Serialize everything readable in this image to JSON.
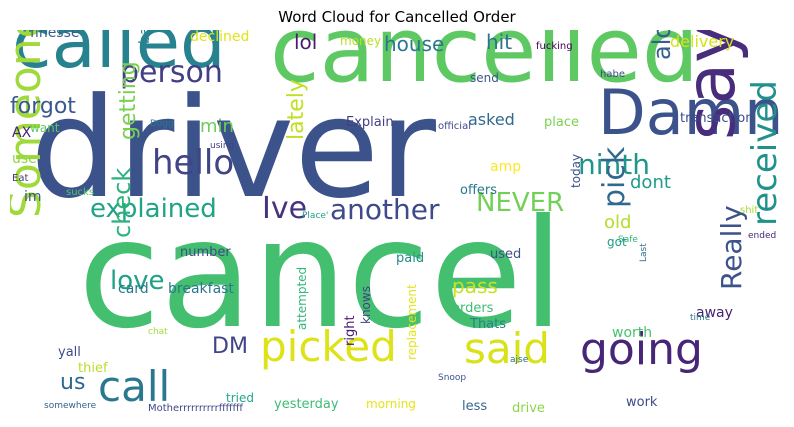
{
  "title": "Word Cloud for Cancelled Order",
  "words": [
    {
      "text": "driver",
      "color": "#3b528b"
    },
    {
      "text": "cancel",
      "color": "#44bf70"
    },
    {
      "text": "cancelled",
      "color": "#5ec962"
    },
    {
      "text": "called",
      "color": "#26828e"
    },
    {
      "text": "Damn",
      "color": "#3b528b"
    },
    {
      "text": "say",
      "color": "#472d7b"
    },
    {
      "text": "picked",
      "color": "#dde318"
    },
    {
      "text": "going",
      "color": "#482677"
    },
    {
      "text": "said",
      "color": "#d8e219"
    },
    {
      "text": "call",
      "color": "#2a788e"
    },
    {
      "text": "Someone",
      "color": "#9fda3a"
    },
    {
      "text": "received",
      "color": "#21918c"
    },
    {
      "text": "hello",
      "color": "#414487"
    },
    {
      "text": "person",
      "color": "#433e85"
    },
    {
      "text": "another",
      "color": "#3e4a89"
    },
    {
      "text": "Ive",
      "color": "#46327e"
    },
    {
      "text": "explained",
      "color": "#20a386"
    },
    {
      "text": "NEVER",
      "color": "#73d056"
    },
    {
      "text": "ninth",
      "color": "#1f968b"
    },
    {
      "text": "pick",
      "color": "#31688e"
    },
    {
      "text": "love",
      "color": "#1fa187"
    },
    {
      "text": "check",
      "color": "#2db27d"
    },
    {
      "text": "Really",
      "color": "#3b528b"
    },
    {
      "text": "alot",
      "color": "#355f8d"
    },
    {
      "text": "getting",
      "color": "#7ad151"
    },
    {
      "text": "lately",
      "color": "#c2df23"
    },
    {
      "text": "forgot",
      "color": "#38598c"
    },
    {
      "text": "house",
      "color": "#2a788e"
    },
    {
      "text": "hit",
      "color": "#2c738e"
    },
    {
      "text": "lol",
      "color": "#481f70"
    },
    {
      "text": "min",
      "color": "#6ccd5a"
    },
    {
      "text": "dont",
      "color": "#1e9b8a"
    },
    {
      "text": "us",
      "color": "#31688e"
    },
    {
      "text": "DM",
      "color": "#414487"
    },
    {
      "text": "pass",
      "color": "#cae11f"
    },
    {
      "text": "old",
      "color": "#b5de2b"
    },
    {
      "text": "delivery",
      "color": "#d8e219"
    },
    {
      "text": "asked",
      "color": "#306a8e"
    },
    {
      "text": "finesse",
      "color": "#355f8d"
    },
    {
      "text": "declined",
      "color": "#e2e418"
    },
    {
      "text": "back",
      "color": "#25848e"
    },
    {
      "text": "money",
      "color": "#bade28"
    },
    {
      "text": "fucking",
      "color": "#440154"
    },
    {
      "text": "send",
      "color": "#39568c"
    },
    {
      "text": "habe",
      "color": "#3f4889"
    },
    {
      "text": "Explain",
      "color": "#433e85"
    },
    {
      "text": "place",
      "color": "#7ad151"
    },
    {
      "text": "transaction",
      "color": "#3e4c8a"
    },
    {
      "text": "official",
      "color": "#3e4989"
    },
    {
      "text": "AX",
      "color": "#482475"
    },
    {
      "text": "want",
      "color": "#5ec962"
    },
    {
      "text": "Dogg",
      "color": "#2a788e"
    },
    {
      "text": "use",
      "color": "#90d743"
    },
    {
      "text": "using",
      "color": "#424186"
    },
    {
      "text": "Eat",
      "color": "#443983"
    },
    {
      "text": "im",
      "color": "#3b528b"
    },
    {
      "text": "sucks",
      "color": "#52c569"
    },
    {
      "text": "amp",
      "color": "#fde725"
    },
    {
      "text": "today",
      "color": "#3b528b"
    },
    {
      "text": "offers",
      "color": "#29798e"
    },
    {
      "text": "Place'",
      "color": "#1f9e89"
    },
    {
      "text": "shit",
      "color": "#a2da37"
    },
    {
      "text": "Safe",
      "color": "#2fb47c"
    },
    {
      "text": "ended",
      "color": "#482878"
    },
    {
      "text": "got",
      "color": "#1f9a8a"
    },
    {
      "text": "Last",
      "color": "#2c728e"
    },
    {
      "text": "number",
      "color": "#3e4a89"
    },
    {
      "text": "paid",
      "color": "#228d8d"
    },
    {
      "text": "used",
      "color": "#3b528b"
    },
    {
      "text": "card",
      "color": "#2b758e"
    },
    {
      "text": "breakfast",
      "color": "#2a788e"
    },
    {
      "text": "attempted",
      "color": "#32b67a"
    },
    {
      "text": "knows",
      "color": "#424086"
    },
    {
      "text": "replacement",
      "color": "#e5e419"
    },
    {
      "text": "orders",
      "color": "#3fbc73"
    },
    {
      "text": "away",
      "color": "#482173"
    },
    {
      "text": "worth",
      "color": "#4ac16d"
    },
    {
      "text": "time",
      "color": "#2a788e"
    },
    {
      "text": "right",
      "color": "#481b6d"
    },
    {
      "text": "Thats",
      "color": "#26828e"
    },
    {
      "text": "chat",
      "color": "#a5db36"
    },
    {
      "text": "yall",
      "color": "#3e4a89"
    },
    {
      "text": "thief",
      "color": "#b8de29"
    },
    {
      "text": "tried",
      "color": "#22a884"
    },
    {
      "text": "yesterday",
      "color": "#3dbc74"
    },
    {
      "text": "morning",
      "color": "#e7e419"
    },
    {
      "text": "ajse",
      "color": "#2c718e"
    },
    {
      "text": "Snoop",
      "color": "#3b528b"
    },
    {
      "text": "less",
      "color": "#31688e"
    },
    {
      "text": "drive",
      "color": "#8bd646"
    },
    {
      "text": "work",
      "color": "#3e4989"
    },
    {
      "text": "somewhere",
      "color": "#33628d"
    },
    {
      "text": "Motherrrrrrrrrrfffffff",
      "color": "#404688"
    }
  ]
}
